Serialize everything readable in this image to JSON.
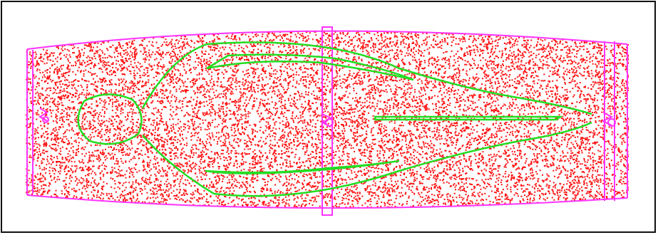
{
  "colors": {
    "background": "#ffffff",
    "frame": "#111111",
    "points": "#ff1111",
    "boundary": "#ff33ff",
    "contour": "#22dd22"
  },
  "points": {
    "density": 0.05,
    "seed": 7
  },
  "icons": [
    "left-support-icon",
    "middle-support-icon",
    "right-support-icon"
  ]
}
